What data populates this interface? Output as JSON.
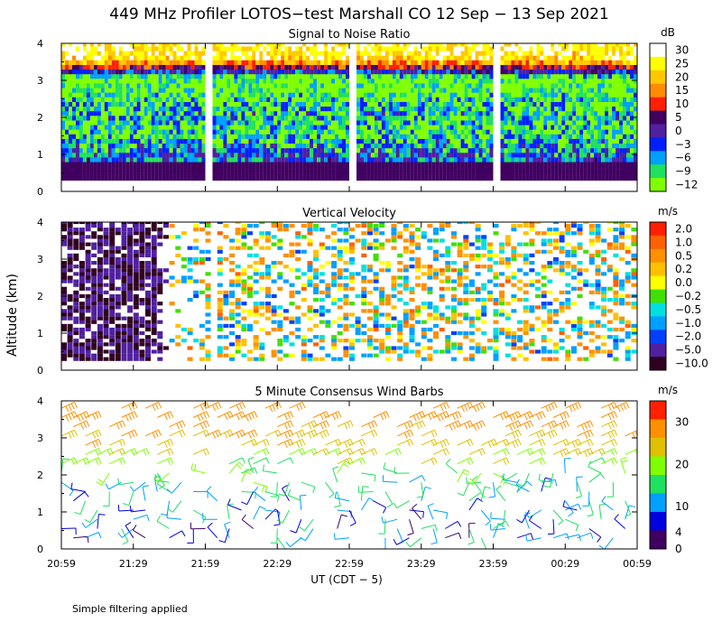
{
  "chart_data": {
    "type": "heatmap",
    "title": "449 MHz Profiler LOTOS−test Marshall CO 12 Sep − 13 Sep 2021",
    "xlabel": "UT  (CDT − 5)",
    "ylabel": "Altitude (km)",
    "x_ticks": [
      "20:59",
      "21:29",
      "21:59",
      "22:29",
      "22:59",
      "23:29",
      "23:59",
      "00:29",
      "00:59"
    ],
    "y_ticks": [
      "0",
      "1",
      "2",
      "3",
      "4"
    ],
    "xlim_minutes": [
      0,
      240
    ],
    "ylim_km": [
      0,
      4
    ],
    "panels": [
      {
        "id": "snr",
        "title": "Signal to Noise Ratio",
        "unit": "dB",
        "type": "heatmap",
        "colorbar": {
          "labels": [
            "30",
            "25",
            "20",
            "15",
            "10",
            "5",
            "0",
            "−3",
            "−6",
            "−9",
            "−12"
          ],
          "colors": [
            "#ffffff",
            "#ffff00",
            "#ffc800",
            "#ff8c00",
            "#ff2000",
            "#400060",
            "#5020a0",
            "#0020ff",
            "#00a0ff",
            "#20e060",
            "#80ff00"
          ]
        },
        "data_gaps_minutes": [
          [
            60,
            63
          ],
          [
            120,
            123
          ],
          [
            180,
            183
          ]
        ],
        "levels_by_altitude_km": [
          {
            "alt": 0.5,
            "value": 0
          },
          {
            "alt": 1.0,
            "value": -3
          },
          {
            "alt": 1.5,
            "value": -9
          },
          {
            "alt": 2.0,
            "value": -6
          },
          {
            "alt": 2.5,
            "value": -9
          },
          {
            "alt": 3.0,
            "value": -12
          },
          {
            "alt": 3.5,
            "value": 25
          },
          {
            "alt": 4.0,
            "value": 30
          }
        ]
      },
      {
        "id": "vv",
        "title": "Vertical Velocity",
        "unit": "m/s",
        "type": "heatmap",
        "colorbar": {
          "labels": [
            "2.0",
            "1.0",
            "0.5",
            "0.2",
            "0.0",
            "−0.2",
            "−0.5",
            "−1.0",
            "−2.0",
            "−5.0",
            "−10.0"
          ],
          "colors": [
            "#ff2000",
            "#ff6000",
            "#ff9000",
            "#ffc000",
            "#ffff00",
            "#40e000",
            "#00e0e0",
            "#00a0ff",
            "#0040ff",
            "#5020a0",
            "#300020"
          ]
        },
        "notes": "Sparse coverage; strong downward motion (about −5 m/s) near 21:00–21:45 UT."
      },
      {
        "id": "wind",
        "title": "5 Minute Consensus Wind Barbs",
        "unit": "m/s",
        "type": "barbs",
        "colorbar": {
          "labels": [
            "30",
            "20",
            "10",
            "4",
            "0"
          ],
          "ticks": [
            30,
            20,
            10,
            4,
            0
          ],
          "colors": [
            "#ff2000",
            "#ff9000",
            "#e0c000",
            "#80ff00",
            "#20e060",
            "#00a0ff",
            "#0000e0",
            "#400060"
          ]
        },
        "speed_by_altitude_km": [
          {
            "alt": 0.5,
            "speed": 4
          },
          {
            "alt": 1.0,
            "speed": 5
          },
          {
            "alt": 1.5,
            "speed": 6
          },
          {
            "alt": 2.0,
            "speed": 8
          },
          {
            "alt": 2.5,
            "speed": 12
          },
          {
            "alt": 3.0,
            "speed": 17
          },
          {
            "alt": 3.5,
            "speed": 20
          },
          {
            "alt": 4.0,
            "speed": 21
          }
        ]
      }
    ]
  },
  "footer": "Simple filtering applied",
  "colors": {
    "axis": "#000000",
    "background": "#ffffff"
  }
}
